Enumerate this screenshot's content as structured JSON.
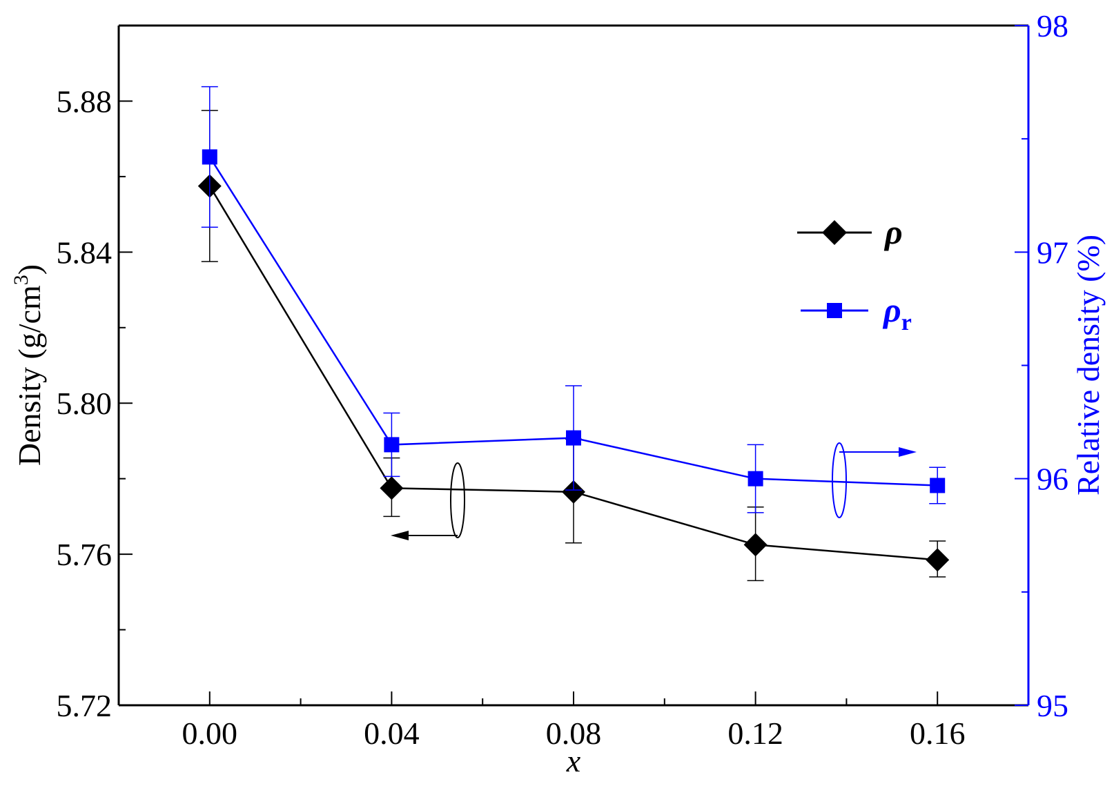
{
  "chart_data": {
    "type": "line",
    "x": [
      0.0,
      0.04,
      0.08,
      0.12,
      0.16
    ],
    "x_tick_labels": [
      "0.00",
      "0.04",
      "0.08",
      "0.12",
      "0.16"
    ],
    "xlabel": "x",
    "xlim": [
      -0.02,
      0.18
    ],
    "left_axis": {
      "label_main": "Density (g/cm",
      "label_sup": "3",
      "label_end": ")",
      "ylim": [
        5.72,
        5.9
      ],
      "ticks": [
        5.72,
        5.76,
        5.8,
        5.84,
        5.88
      ],
      "tick_labels": [
        "5.72",
        "5.76",
        "5.80",
        "5.84",
        "5.88"
      ],
      "color": "#000000"
    },
    "right_axis": {
      "label": "Relative density (%)",
      "ylim": [
        95,
        98
      ],
      "ticks": [
        95,
        96,
        97,
        98
      ],
      "tick_labels": [
        "95",
        "96",
        "97",
        "98"
      ],
      "color": "#0000ff"
    },
    "series": [
      {
        "name": "ρ",
        "name_sub": "",
        "axis": "left",
        "marker": "diamond",
        "color": "#000000",
        "values": [
          5.8575,
          5.7775,
          5.7765,
          5.7625,
          5.7585
        ],
        "err_upper": [
          5.8775,
          5.7855,
          5.7905,
          5.7725,
          5.7635
        ],
        "err_lower": [
          5.8375,
          5.77,
          5.763,
          5.753,
          5.754
        ]
      },
      {
        "name": "ρ",
        "name_sub": "r",
        "axis": "right",
        "marker": "square",
        "color": "#0000ff",
        "values": [
          97.42,
          96.15,
          96.18,
          96.0,
          95.97
        ],
        "err_upper": [
          97.73,
          96.29,
          96.41,
          96.15,
          96.05
        ],
        "err_lower": [
          97.11,
          96.01,
          95.95,
          95.85,
          95.89
        ]
      }
    ],
    "legend_position": "upper-right",
    "grid": false
  }
}
